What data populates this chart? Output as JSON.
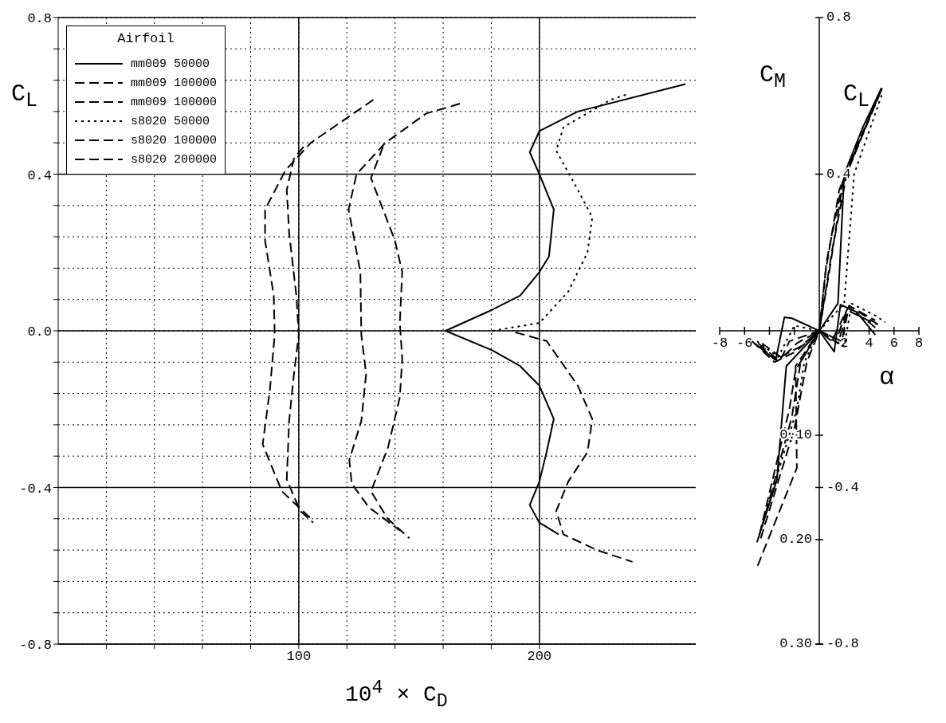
{
  "chart_data": [
    {
      "type": "line",
      "xlabel": "10$^{4}$ × C$_{D}$",
      "ylabel": "C$_{L}$",
      "legend_title": "Airfoil",
      "legend": "top left",
      "grid": true,
      "xlim": [
        0,
        265
      ],
      "xticks": [
        {
          "value": 20,
          "label": null
        },
        {
          "value": 40,
          "label": null
        },
        {
          "value": 60,
          "label": null
        },
        {
          "value": 80,
          "label": null
        },
        100,
        {
          "value": 120,
          "label": null
        },
        {
          "value": 140,
          "label": null
        },
        {
          "value": 160,
          "label": null
        },
        {
          "value": 180,
          "label": null
        },
        200
      ],
      "ylim": [
        -0.8,
        0.8
      ],
      "yticks": [
        -0.8,
        {
          "value": -0.72,
          "label": null
        },
        {
          "value": -0.64,
          "label": null
        },
        {
          "value": -0.56,
          "label": null
        },
        {
          "value": -0.48,
          "label": null
        },
        -0.4,
        {
          "value": -0.32,
          "label": null
        },
        {
          "value": -0.24,
          "label": null
        },
        {
          "value": -0.16,
          "label": null
        },
        {
          "value": -0.08,
          "label": null
        },
        {
          "value": 0,
          "label": "0.0"
        },
        {
          "value": 0.08,
          "label": null
        },
        {
          "value": 0.16,
          "label": null
        },
        {
          "value": 0.24,
          "label": null
        },
        {
          "value": 0.32,
          "label": null
        },
        0.4,
        {
          "value": 0.48,
          "label": null
        },
        {
          "value": 0.56,
          "label": null
        },
        {
          "value": 0.64,
          "label": null
        },
        {
          "value": 0.72,
          "label": null
        },
        0.8
      ],
      "series": [
        {
          "name": "mm009 50000",
          "color": "#000000",
          "line_style": "solid",
          "x": [
            260.7,
            216,
            200,
            196,
            200,
            206,
            204,
            200,
            192,
            180.5,
            161,
            180.5,
            192,
            200,
            206,
            203,
            200,
            196,
            200,
            208
          ],
          "values": [
            0.63,
            0.56,
            0.51,
            0.456,
            0.4,
            0.31,
            0.19,
            0.15,
            0.09,
            0.054,
            0,
            -0.05,
            -0.09,
            -0.14,
            -0.225,
            -0.31,
            -0.385,
            -0.445,
            -0.49,
            -0.52
          ]
        },
        {
          "name": "mm009 100000",
          "color": "#000000",
          "line_style": "dashed",
          "x": [
            167,
            153,
            136,
            124,
            120.7,
            125.6,
            126,
            128,
            126,
            121,
            122,
            129,
            142
          ],
          "values": [
            0.58,
            0.555,
            0.48,
            0.4,
            0.31,
            0.15,
            -0.01,
            -0.11,
            -0.23,
            -0.33,
            -0.39,
            -0.45,
            -0.51
          ]
        },
        {
          "name": "mm009 100000",
          "color": "#000000",
          "line_style": "dashed",
          "x": [
            131,
            105,
            94.5,
            86,
            86,
            89.6,
            90,
            88,
            85,
            93,
            106
          ],
          "values": [
            0.59,
            0.48,
            0.41,
            0.31,
            0.23,
            0.09,
            -0.01,
            -0.15,
            -0.29,
            -0.41,
            -0.485
          ]
        },
        {
          "name": "s8020 50000",
          "color": "#000000",
          "line_style": "dotted",
          "x": [
            180.5,
            200,
            212,
            220,
            222,
            216,
            207,
            210,
            229.6,
            237
          ],
          "values": [
            0,
            0.02,
            0.1,
            0.2,
            0.29,
            0.36,
            0.46,
            0.52,
            0.59,
            0.605
          ]
        },
        {
          "name": "s8020 100000",
          "color": "#000000",
          "line_style": "dashed",
          "x": [
            135,
            130,
            135,
            140,
            143,
            142,
            143,
            142,
            137,
            130,
            137,
            146,
            null,
            190,
            203,
            216,
            222,
            220,
            212,
            207,
            210,
            224,
            238.7
          ],
          "values": [
            0.47,
            0.39,
            0.31,
            0.23,
            0.15,
            0.02,
            -0.07,
            -0.17,
            -0.3,
            -0.41,
            -0.48,
            -0.53,
            null,
            -0.004,
            -0.026,
            -0.14,
            -0.225,
            -0.31,
            -0.385,
            -0.46,
            -0.52,
            -0.56,
            -0.59
          ]
        },
        {
          "name": "s8020 200000",
          "color": "#000000",
          "line_style": "dashed",
          "x": [
            102,
            98,
            95,
            96,
            99,
            100,
            98,
            96,
            95,
            100.6,
            106
          ],
          "values": [
            0.47,
            0.44,
            0.36,
            0.25,
            0.09,
            -0.01,
            -0.11,
            -0.23,
            -0.38,
            -0.46,
            -0.49
          ]
        }
      ]
    },
    {
      "type": "line",
      "xlabel": "α",
      "ylabel": "C$_{L}$",
      "y2label": "C$_{M}$",
      "xlim": [
        -8,
        8
      ],
      "xticks": [
        -8,
        -6,
        {
          "value": -4,
          "label": null
        },
        {
          "value": -2,
          "label": null
        },
        2,
        4,
        6,
        8
      ],
      "ylim": [
        -0.8,
        0.8
      ],
      "yticks": [
        0.8,
        0.4,
        -0.4,
        -0.8
      ],
      "y2lim": [
        0.3,
        -0.3
      ],
      "y2ticks": [
        {
          "value": 0.1,
          "label": "0.10"
        },
        {
          "value": 0.2,
          "label": "0.20"
        },
        {
          "value": 0.3,
          "label": "0.30"
        }
      ],
      "series": [
        {
          "color": "#000000",
          "line_style": "solid",
          "x": [
            -5,
            -3.4,
            -2.65,
            0,
            1.5,
            2,
            3.5,
            5
          ],
          "values": [
            -0.54,
            -0.38,
            -0.09,
            0,
            0.07,
            0.4,
            0.52,
            0.62
          ]
        },
        {
          "color": "#000000",
          "line_style": "dashed",
          "x": [
            -4.8,
            -2.4,
            -1.9,
            0,
            0.8,
            1.9,
            5
          ],
          "values": [
            -0.52,
            -0.2,
            -0.1,
            0,
            0.15,
            0.38,
            0.62
          ]
        },
        {
          "color": "#000000",
          "line_style": "dashed",
          "x": [
            -4.6,
            -2.2,
            -1.5,
            0,
            0.5,
            1.6,
            4.8
          ],
          "values": [
            -0.5,
            -0.22,
            -0.08,
            0,
            0.15,
            0.36,
            0.6
          ]
        },
        {
          "color": "#000000",
          "line_style": "dotted",
          "x": [
            -4.6,
            -1.8,
            -1.2,
            0,
            2,
            2.8,
            5.1
          ],
          "values": [
            -0.5,
            -0.2,
            -0.08,
            0,
            0.07,
            0.4,
            0.61
          ]
        },
        {
          "color": "#000000",
          "line_style": "dashed",
          "x": [
            -4.95,
            -1.8,
            -1.9,
            0,
            1,
            2.2,
            5
          ],
          "values": [
            -0.6,
            -0.35,
            -0.09,
            0,
            0.2,
            0.4,
            0.62
          ]
        },
        {
          "color": "#000000",
          "line_style": "dashed",
          "x": [
            -4.7,
            -2,
            -1,
            0,
            0.6,
            2,
            5.2
          ],
          "values": [
            -0.53,
            -0.25,
            -0.08,
            0,
            0.18,
            0.4,
            0.63
          ]
        },
        {
          "color": "#000000",
          "line_style": "solid",
          "axis": "y2",
          "x": [
            -5.2,
            -3.5,
            -2.8,
            -2.2,
            0,
            1.2,
            1.7,
            3,
            4.5
          ],
          "values": [
            0.012,
            0.028,
            -0.013,
            -0.012,
            0,
            0.02,
            -0.025,
            -0.018,
            0.004
          ]
        },
        {
          "color": "#000000",
          "line_style": "dashed",
          "axis": "y2",
          "x": [
            -4.8,
            -3.2,
            -2.4,
            0,
            1,
            2.3,
            4,
            4.8
          ],
          "values": [
            0.015,
            0.03,
            0.01,
            0,
            0.01,
            -0.022,
            -0.008,
            0
          ]
        },
        {
          "color": "#000000",
          "line_style": "dashed",
          "axis": "y2",
          "x": [
            -4.6,
            -3,
            -1.8,
            0,
            1.5,
            2.4,
            4.2,
            5
          ],
          "values": [
            0.012,
            0.026,
            0.012,
            0,
            0.012,
            -0.024,
            -0.01,
            -0.004
          ]
        },
        {
          "color": "#000000",
          "line_style": "dotted",
          "axis": "y2",
          "x": [
            -5,
            -3.3,
            -2,
            0,
            2,
            2.6,
            4.6,
            5.3
          ],
          "values": [
            0.01,
            0.025,
            -0.005,
            0,
            0.015,
            -0.026,
            -0.014,
            -0.008
          ]
        },
        {
          "color": "#000000",
          "line_style": "dashed",
          "axis": "y2",
          "x": [
            -5.4,
            -3.6,
            -1.9,
            0,
            1.8,
            2.4,
            4.5
          ],
          "values": [
            0.01,
            0.03,
            0.02,
            0,
            0.01,
            -0.024,
            -0.01
          ]
        },
        {
          "color": "#000000",
          "line_style": "dashed",
          "axis": "y2",
          "x": [
            -4.9,
            -3.4,
            -1.5,
            0,
            1.4,
            2.2,
            4.6
          ],
          "values": [
            0.012,
            0.027,
            0.015,
            0,
            0.008,
            -0.02,
            -0.006
          ]
        }
      ]
    }
  ]
}
